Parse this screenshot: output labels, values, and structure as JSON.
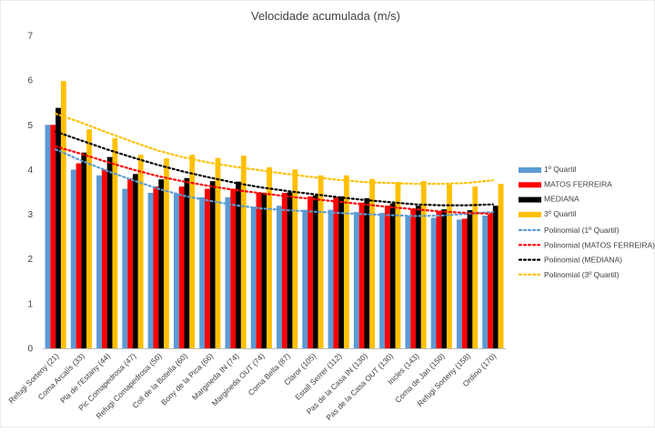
{
  "chart_data": {
    "type": "bar",
    "title": "Velocidade acumulada (m/s)",
    "xlabel": "",
    "ylabel": "",
    "ylim": [
      0,
      7
    ],
    "yticks": [
      0,
      1,
      2,
      3,
      4,
      5,
      6,
      7
    ],
    "grid": false,
    "legend_position": "right",
    "categories": [
      "Refugi Sorteny (21)",
      "Coma Arcalís (33)",
      "Pla de l'Estany (44)",
      "Pic Comapedrosa (47)",
      "Refugi Comapedrosa (50)",
      "Coll de la Botella (60)",
      "Bony de la Pica (66)",
      "Margineda IN (74)",
      "Margineda OUT (74)",
      "Coma Bella (87)",
      "Claror (105)",
      "Estall Serrer (112)",
      "Pas de la Casa IN (130)",
      "Pas de la Casa OUT (130)",
      "Incles (143)",
      "Coma de Jan (150)",
      "Refugi Sorteny (158)",
      "Ordino (170)"
    ],
    "series": [
      {
        "name": "1º Quartil",
        "color": "#5B9BD5",
        "values": [
          5.0,
          4.0,
          3.87,
          3.57,
          3.48,
          3.46,
          3.38,
          3.38,
          3.17,
          3.19,
          3.1,
          3.1,
          3.05,
          3.03,
          2.97,
          2.92,
          2.88,
          2.97
        ]
      },
      {
        "name": "MATOS FERREIRA",
        "color": "#FF0000",
        "values": [
          5.0,
          4.14,
          4.0,
          3.8,
          3.62,
          3.62,
          3.57,
          3.57,
          3.48,
          3.48,
          3.4,
          3.38,
          3.26,
          3.19,
          3.12,
          3.07,
          2.9,
          3.0
        ]
      },
      {
        "name": "MEDIANA",
        "color": "#000000",
        "values": [
          5.38,
          4.38,
          4.28,
          3.9,
          3.78,
          3.81,
          3.74,
          3.73,
          3.48,
          3.49,
          3.42,
          3.4,
          3.36,
          3.24,
          3.19,
          3.11,
          3.09,
          3.19
        ]
      },
      {
        "name": "3º Quartil",
        "color": "#FFC000",
        "values": [
          5.98,
          4.9,
          4.7,
          4.33,
          4.25,
          4.33,
          4.26,
          4.31,
          4.05,
          4.0,
          3.87,
          3.87,
          3.79,
          3.72,
          3.74,
          3.67,
          3.62,
          3.68
        ]
      }
    ],
    "trendlines": [
      {
        "name": "Polinomial (1º Quartil)",
        "color": "#5B9BD5",
        "values": [
          4.45,
          4.2,
          3.97,
          3.76,
          3.57,
          3.41,
          3.3,
          3.2,
          3.13,
          3.09,
          3.06,
          3.03,
          3.0,
          2.98,
          2.96,
          2.97,
          3.01,
          3.05
        ]
      },
      {
        "name": "Polinomial (MATOS FERREIRA)",
        "color": "#FF0000",
        "values": [
          4.52,
          4.35,
          4.17,
          4.0,
          3.85,
          3.73,
          3.63,
          3.54,
          3.47,
          3.4,
          3.34,
          3.28,
          3.22,
          3.16,
          3.11,
          3.06,
          3.03,
          3.01
        ]
      },
      {
        "name": "Polinomial (MEDIANA)",
        "color": "#000000",
        "values": [
          4.85,
          4.65,
          4.45,
          4.27,
          4.1,
          3.95,
          3.82,
          3.7,
          3.6,
          3.52,
          3.45,
          3.38,
          3.32,
          3.27,
          3.22,
          3.2,
          3.2,
          3.22
        ]
      },
      {
        "name": "Polinomial (3º Quartil)",
        "color": "#FFC000",
        "values": [
          5.25,
          5.05,
          4.83,
          4.62,
          4.42,
          4.27,
          4.15,
          4.06,
          3.98,
          3.9,
          3.83,
          3.77,
          3.72,
          3.7,
          3.68,
          3.68,
          3.7,
          3.76
        ]
      }
    ]
  }
}
